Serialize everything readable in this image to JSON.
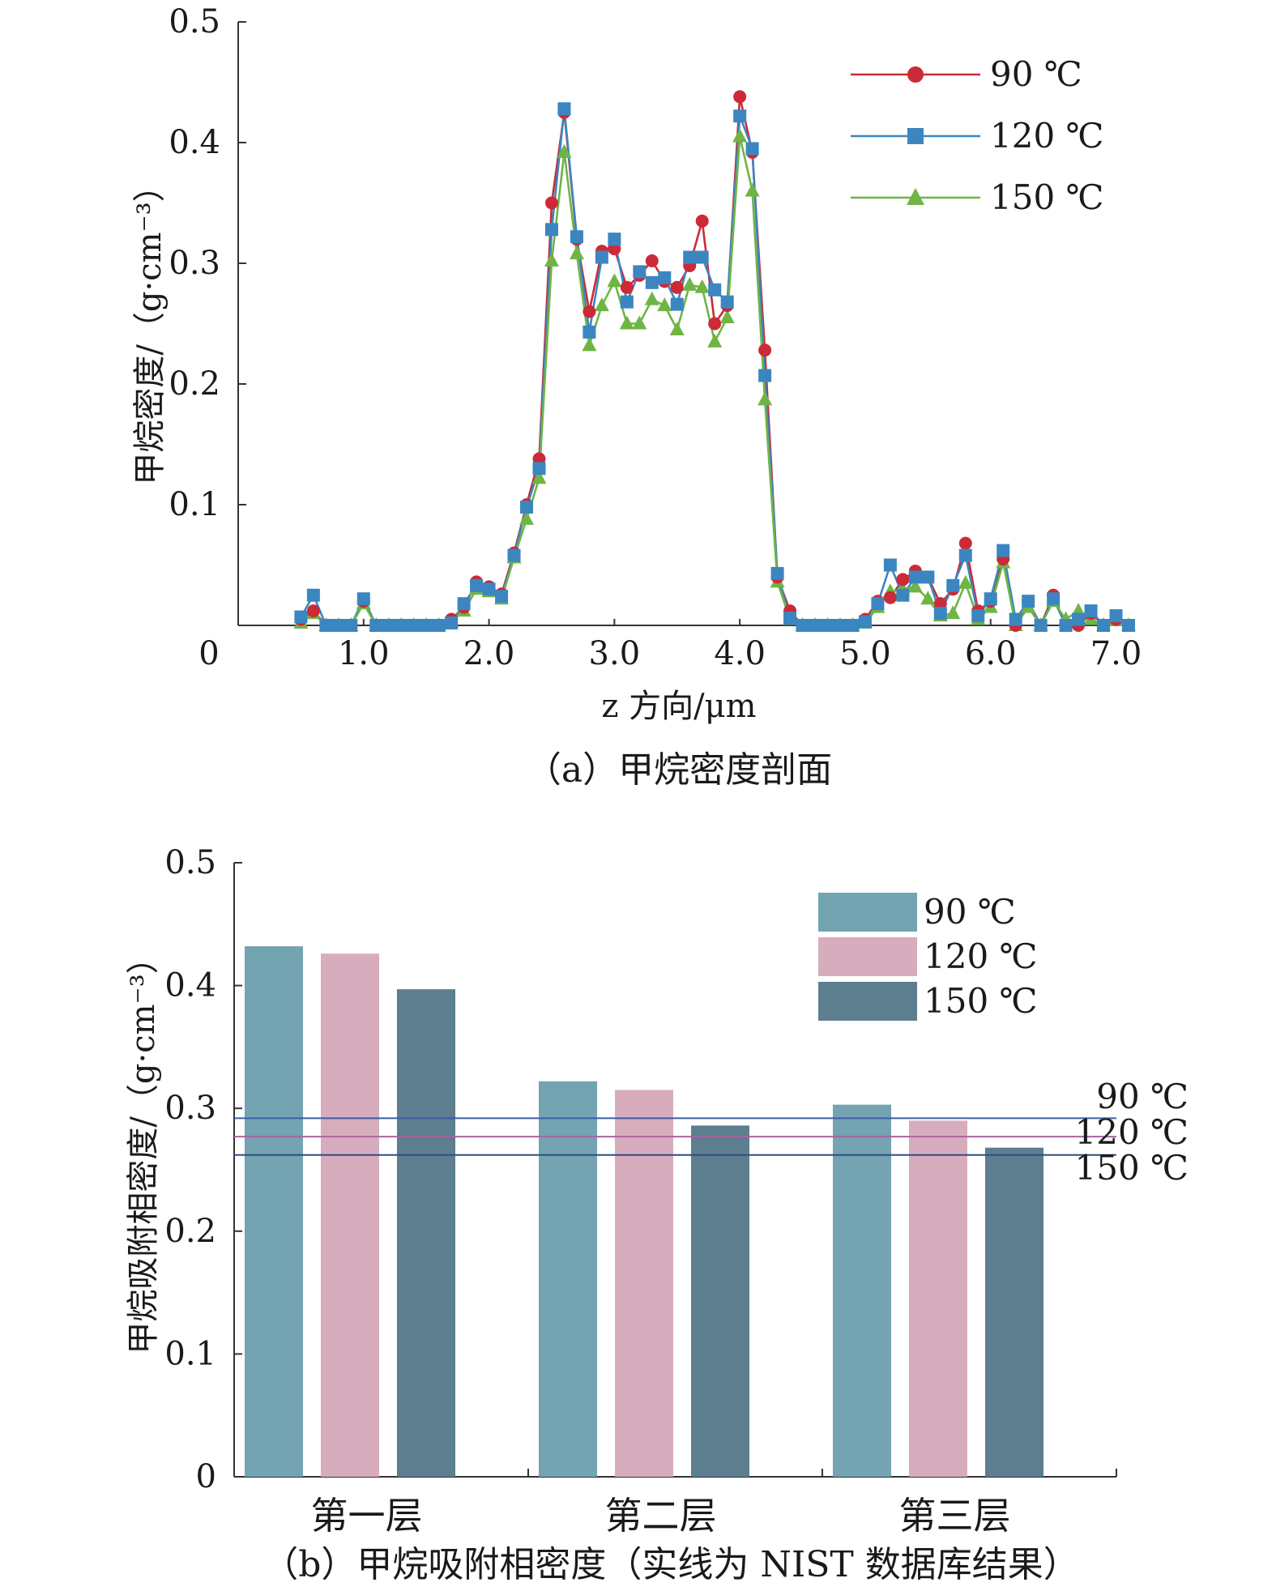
{
  "chart_data": [
    {
      "type": "line",
      "caption": "（a）甲烷密度剖面",
      "xlabel": "z 方向/μm",
      "ylabel": "甲烷密度/（g·cm⁻³）",
      "xlim": [
        0,
        7.1
      ],
      "ylim": [
        0,
        0.5
      ],
      "x_ticks": [
        "0",
        "1.0",
        "2.0",
        "3.0",
        "4.0",
        "5.0",
        "6.0",
        "7.0"
      ],
      "y_ticks": [
        "0.1",
        "0.2",
        "0.3",
        "0.4",
        "0.5"
      ],
      "legend_position": "top-right",
      "x": [
        0.5,
        0.6,
        0.7,
        0.8,
        0.9,
        1.0,
        1.1,
        1.2,
        1.3,
        1.4,
        1.5,
        1.6,
        1.7,
        1.8,
        1.9,
        2.0,
        2.1,
        2.2,
        2.3,
        2.4,
        2.5,
        2.6,
        2.7,
        2.8,
        2.9,
        3.0,
        3.1,
        3.2,
        3.3,
        3.4,
        3.5,
        3.6,
        3.7,
        3.8,
        3.9,
        4.0,
        4.1,
        4.2,
        4.3,
        4.4,
        4.5,
        4.6,
        4.7,
        4.8,
        4.9,
        5.0,
        5.1,
        5.2,
        5.3,
        5.4,
        5.5,
        5.6,
        5.7,
        5.8,
        5.9,
        6.0,
        6.1,
        6.2,
        6.3,
        6.4,
        6.5,
        6.6,
        6.7,
        6.8,
        6.9,
        7.0,
        7.1
      ],
      "series": [
        {
          "name": "90 ℃",
          "color": "#cc2a36",
          "marker": "circle",
          "values": [
            0.005,
            0.012,
            0,
            0,
            0,
            0.02,
            0,
            0,
            0,
            0,
            0,
            0,
            0.005,
            0.015,
            0.036,
            0.032,
            0.026,
            0.06,
            0.1,
            0.138,
            0.35,
            0.425,
            0.32,
            0.26,
            0.31,
            0.312,
            0.28,
            0.29,
            0.302,
            0.285,
            0.28,
            0.298,
            0.335,
            0.25,
            0.265,
            0.438,
            0.392,
            0.228,
            0.04,
            0.012,
            0,
            0,
            0,
            0,
            0,
            0.005,
            0.02,
            0.023,
            0.038,
            0.045,
            0.04,
            0.018,
            0.03,
            0.068,
            0.012,
            0.02,
            0.055,
            0,
            0.02,
            0,
            0.025,
            0,
            0,
            0.01,
            0,
            0.005,
            0
          ]
        },
        {
          "name": "120 ℃",
          "color": "#3b86c0",
          "marker": "square",
          "values": [
            0.007,
            0.025,
            0,
            0,
            0,
            0.022,
            0,
            0,
            0,
            0,
            0,
            0,
            0.002,
            0.018,
            0.033,
            0.03,
            0.024,
            0.058,
            0.098,
            0.13,
            0.328,
            0.428,
            0.322,
            0.243,
            0.305,
            0.32,
            0.268,
            0.293,
            0.284,
            0.288,
            0.266,
            0.305,
            0.305,
            0.278,
            0.268,
            0.422,
            0.395,
            0.207,
            0.043,
            0.006,
            0,
            0,
            0,
            0,
            0,
            0.003,
            0.018,
            0.05,
            0.025,
            0.04,
            0.04,
            0.01,
            0.033,
            0.058,
            0.008,
            0.022,
            0.062,
            0.005,
            0.02,
            0,
            0.022,
            0,
            0.005,
            0.012,
            0,
            0.008,
            0
          ]
        },
        {
          "name": "150 ℃",
          "color": "#6fb545",
          "marker": "triangle",
          "values": [
            0.002,
            0.01,
            0,
            0,
            0,
            0.018,
            0,
            0,
            0,
            0,
            0,
            0,
            0.003,
            0.012,
            0.03,
            0.028,
            0.022,
            0.056,
            0.088,
            0.122,
            0.302,
            0.392,
            0.308,
            0.232,
            0.265,
            0.285,
            0.25,
            0.25,
            0.27,
            0.265,
            0.245,
            0.282,
            0.28,
            0.235,
            0.255,
            0.405,
            0.36,
            0.187,
            0.036,
            0.005,
            0,
            0,
            0,
            0,
            0,
            0.002,
            0.015,
            0.028,
            0.03,
            0.032,
            0.022,
            0.008,
            0.01,
            0.035,
            0.005,
            0.015,
            0.052,
            0,
            0.015,
            0,
            0.02,
            0.005,
            0.012,
            0.005,
            0,
            0.004,
            0
          ]
        }
      ]
    },
    {
      "type": "bar",
      "caption": "（b）甲烷吸附相密度（实线为 NIST 数据库结果）",
      "ylabel": "甲烷吸附相密度/（g·cm⁻³）",
      "categories": [
        "第一层",
        "第二层",
        "第三层"
      ],
      "ylim": [
        0,
        0.5
      ],
      "y_ticks": [
        "0",
        "0.1",
        "0.2",
        "0.3",
        "0.4",
        "0.5"
      ],
      "legend_position": "top-right",
      "series": [
        {
          "name": "90 ℃",
          "color": "#74a3b2",
          "values": [
            0.432,
            0.322,
            0.303
          ]
        },
        {
          "name": "120 ℃",
          "color": "#d7adbe",
          "values": [
            0.426,
            0.315,
            0.29
          ]
        },
        {
          "name": "150 ℃",
          "color": "#5c7e8f",
          "values": [
            0.397,
            0.286,
            0.268
          ]
        }
      ],
      "reference_lines": [
        {
          "label": "90 ℃",
          "value": 0.292,
          "color": "#3a5fa8"
        },
        {
          "label": "120 ℃",
          "value": 0.277,
          "color": "#a864a0"
        },
        {
          "label": "150 ℃",
          "value": 0.262,
          "color": "#2e4f80"
        }
      ]
    }
  ]
}
